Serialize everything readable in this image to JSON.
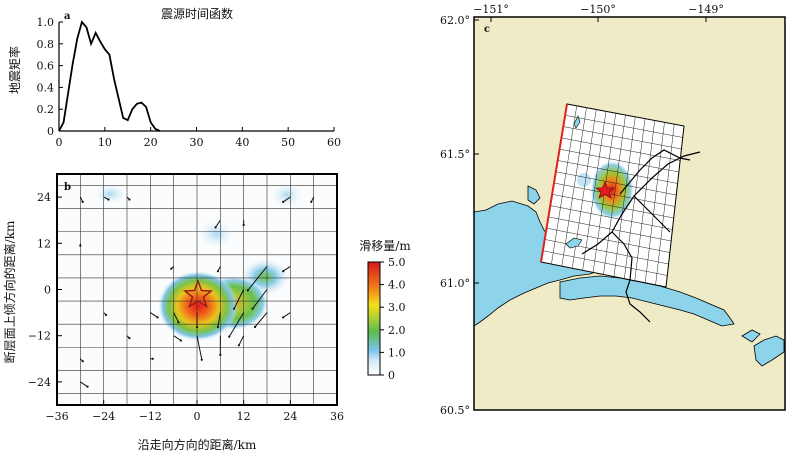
{
  "chart_data": [
    {
      "type": "line",
      "panel": "a",
      "title": "震源时间函数",
      "xlabel": "",
      "ylabel": "地震矩率",
      "xlim": [
        0,
        60
      ],
      "ylim": [
        0,
        1.0
      ],
      "xticks": [
        "0",
        "10",
        "20",
        "30",
        "40",
        "50",
        "60"
      ],
      "yticks": [
        "0",
        "0.2",
        "0.4",
        "0.6",
        "0.8",
        "1.0"
      ],
      "x": [
        0,
        1,
        2,
        3,
        4,
        5,
        6,
        7,
        8,
        9,
        10,
        11,
        12,
        13,
        14,
        15,
        16,
        17,
        18,
        19,
        20,
        21,
        22
      ],
      "y": [
        0,
        0.08,
        0.35,
        0.62,
        0.85,
        1.0,
        0.95,
        0.8,
        0.9,
        0.82,
        0.75,
        0.7,
        0.48,
        0.3,
        0.12,
        0.1,
        0.2,
        0.25,
        0.26,
        0.22,
        0.08,
        0.02,
        0
      ]
    },
    {
      "type": "heatmap",
      "panel": "b",
      "xlabel": "沿走向方向的距离/km",
      "ylabel": "断层面上倾方向的距离/km",
      "xlim": [
        -36,
        36
      ],
      "ylim": [
        -30,
        30
      ],
      "xticks": [
        "−36",
        "−24",
        "−12",
        "0",
        "12",
        "24",
        "36"
      ],
      "yticks": [
        "24",
        "12",
        "0",
        "−12",
        "−24"
      ],
      "colorbar": {
        "label": "滑移量/m",
        "range": [
          0,
          5
        ],
        "ticks": [
          "5.0",
          "4.0",
          "3.0",
          "2.0",
          "1.0",
          "0"
        ]
      },
      "slip_patches": [
        {
          "x": 0,
          "y": -3,
          "slip": 5.0
        },
        {
          "x": 8,
          "y": -3,
          "slip": 2.5
        },
        {
          "x": 16,
          "y": 4,
          "slip": 1.3
        },
        {
          "x": 22,
          "y": 24,
          "slip": 0.6
        },
        {
          "x": 4,
          "y": 15,
          "slip": 0.8
        },
        {
          "x": -24,
          "y": 26,
          "slip": 0.4
        }
      ],
      "hypocenter": {
        "x": 0,
        "y": 0
      }
    },
    {
      "type": "map",
      "panel": "c",
      "lon_ticks": [
        "−151°",
        "−150°",
        "−149°"
      ],
      "lat_ticks": [
        "62.0°",
        "61.5°",
        "61.0°",
        "60.5°"
      ],
      "lon_range": [
        -151,
        -148.5
      ],
      "lat_range": [
        60.5,
        62.0
      ],
      "epicenter": {
        "lon": -150.0,
        "lat": 61.35
      },
      "colors": {
        "land": "#EFEBC6",
        "water": "#8DD4EA",
        "slip_max": "#E82418",
        "trench_edge": "#E02020"
      }
    }
  ],
  "labels": {
    "panel_a": "a",
    "panel_b": "b",
    "panel_c": "c",
    "a_title": "震源时间函数",
    "a_ylabel": "地震矩率",
    "b_xlabel": "沿走向方向的距离/km",
    "b_ylabel": "断层面上倾方向的距离/km",
    "cb_label": "滑移量/m"
  }
}
